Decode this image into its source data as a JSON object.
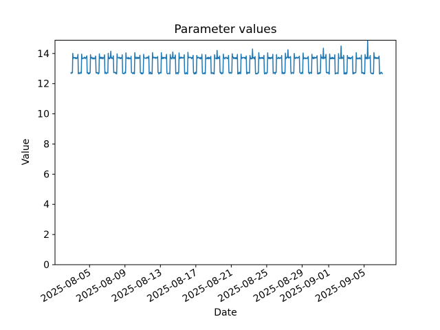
{
  "chart_data": {
    "type": "line",
    "title": "Parameter values",
    "xlabel": "Date",
    "ylabel": "Value",
    "line_color": "#1f77b4",
    "line_width": 1.5,
    "axis_color": "#000000",
    "ylim": [
      0,
      14.88
    ],
    "yticks": [
      0,
      2,
      4,
      6,
      8,
      10,
      12,
      14
    ],
    "xlim_days": [
      -3.9,
      34.6
    ],
    "xticks": [
      {
        "label": "2025-08-05",
        "day_offset": 0
      },
      {
        "label": "2025-08-09",
        "day_offset": 4
      },
      {
        "label": "2025-08-13",
        "day_offset": 8
      },
      {
        "label": "2025-08-17",
        "day_offset": 12
      },
      {
        "label": "2025-08-21",
        "day_offset": 16
      },
      {
        "label": "2025-08-25",
        "day_offset": 20
      },
      {
        "label": "2025-08-29",
        "day_offset": 24
      },
      {
        "label": "2025-09-01",
        "day_offset": 27
      },
      {
        "label": "2025-09-05",
        "day_offset": 31
      }
    ],
    "series": {
      "name": "Parameter values",
      "t_start_days": -2.1,
      "t_end_days": 33.05,
      "samples_per_day": 24,
      "period_days": 1,
      "low_value": 12.7,
      "high_value": 13.7,
      "high_start_frac": 0.08,
      "high_end_frac": 0.7,
      "rise_spike_value": 13.97,
      "fall_spike_value": 13.88,
      "noise_amplitude": 0.06,
      "observed_min": 12.55,
      "observed_max": 14.85,
      "day_peaks": {
        "2": 14.15,
        "9": 14.1,
        "14": 14.2,
        "18": 14.3,
        "22": 14.25,
        "26": 14.35,
        "28": 14.5,
        "31": 14.85
      }
    }
  }
}
